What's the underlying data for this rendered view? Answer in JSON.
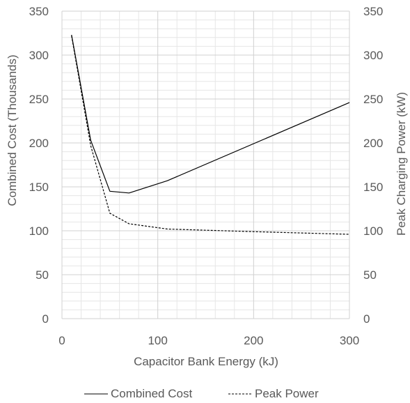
{
  "chart_data": {
    "type": "line",
    "xlabel": "Capacitor Bank Energy (kJ)",
    "ylabel": "Combined Cost (Thousands)",
    "y2label": "Peak Charging Power  (kW)",
    "xlim": [
      0,
      300
    ],
    "ylim": [
      0,
      350
    ],
    "y2lim": [
      0,
      350
    ],
    "x_ticks": [
      0,
      100,
      200,
      300
    ],
    "y_ticks": [
      0,
      50,
      100,
      150,
      200,
      250,
      300,
      350
    ],
    "y2_ticks": [
      0,
      50,
      100,
      150,
      200,
      250,
      300,
      350
    ],
    "grid": true,
    "legend": "bottom",
    "series": [
      {
        "name": "Combined Cost",
        "axis": "left",
        "style": "solid",
        "color": "#000000",
        "x": [
          10,
          30,
          50,
          70,
          110,
          300
        ],
        "y": [
          323,
          203,
          145,
          143,
          157,
          246
        ]
      },
      {
        "name": "Peak Power",
        "axis": "right",
        "style": "dashed",
        "color": "#000000",
        "x": [
          10,
          30,
          50,
          70,
          110,
          200,
          300
        ],
        "y": [
          322,
          197,
          120,
          108,
          102,
          99,
          96
        ]
      }
    ]
  }
}
